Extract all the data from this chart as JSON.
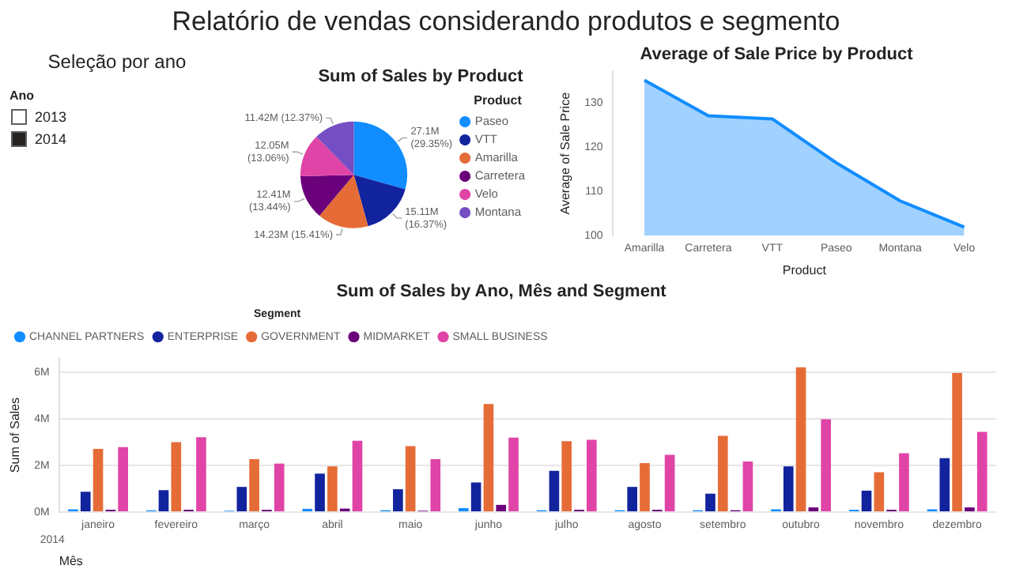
{
  "chart_data": [
    {
      "type": "other",
      "title": "Seleção por ano",
      "legend_title": "Ano",
      "categories": [
        "2013",
        "2014"
      ],
      "colors": [
        "#ffffff",
        "#252423"
      ],
      "annotations": [
        "Relatório de vendas considerando produtos e segmento"
      ]
    },
    {
      "type": "pie",
      "title": "Sum of Sales by Product",
      "legend_title": "Product",
      "legend": "right",
      "categories": [
        "Paseo",
        "VTT",
        "Amarilla",
        "Carretera",
        "Velo",
        "Montana"
      ],
      "values": [
        29.35,
        16.37,
        15.41,
        13.44,
        13.06,
        12.37
      ],
      "colors": [
        "#118dff",
        "#12239e",
        "#e66c37",
        "#6b007b",
        "#e044a7",
        "#744ec2"
      ],
      "value_labels": [
        "27.1M\n(29.35%)",
        "15.11M\n(16.37%)",
        "14.23M (15.41%)",
        "12.41M\n(13.44%)",
        "12.05M\n(13.06%)",
        "11.42M (12.37%)"
      ]
    },
    {
      "type": "area",
      "title": "Average of Sale Price by Product",
      "xlabel": "Product",
      "ylabel": "Average of Sale Price",
      "categories": [
        "Amarilla",
        "Carretera",
        "VTT",
        "Paseo",
        "Montana",
        "Velo"
      ],
      "values": [
        135.0,
        127.0,
        126.3,
        116.4,
        107.8,
        101.9
      ],
      "color": "#118dff",
      "ylim": [
        100,
        137
      ],
      "yticks": [
        100,
        110,
        120,
        130
      ]
    },
    {
      "type": "bar",
      "title": "Sum of Sales by Ano, Mês and Segment",
      "xlabel": "Mês",
      "ylabel": "Sum of Sales",
      "legend_title": "Segment",
      "legend": "top left",
      "grid": "y",
      "annotations": [
        "2014"
      ],
      "categories": [
        "janeiro",
        "fevereiro",
        "março",
        "abril",
        "maio",
        "junho",
        "julho",
        "agosto",
        "setembro",
        "outubro",
        "novembro",
        "dezembro"
      ],
      "ylim": [
        0,
        6.6
      ],
      "yticks": [
        {
          "value": 0,
          "label": "0M"
        },
        {
          "value": 2,
          "label": "2M"
        },
        {
          "value": 4,
          "label": "4M"
        },
        {
          "value": 6,
          "label": "6M"
        }
      ],
      "series": [
        {
          "name": "CHANNEL PARTNERS",
          "color": "#118dff",
          "values": [
            0.12,
            0.08,
            0.06,
            0.14,
            0.08,
            0.17,
            0.08,
            0.08,
            0.08,
            0.12,
            0.1,
            0.12
          ]
        },
        {
          "name": "ENTERPRISE",
          "color": "#12239e",
          "values": [
            0.87,
            0.94,
            1.08,
            1.65,
            0.98,
            1.27,
            1.77,
            1.08,
            0.79,
            1.96,
            0.92,
            2.31
          ]
        },
        {
          "name": "GOVERNMENT",
          "color": "#e66c37",
          "values": [
            2.71,
            3.0,
            2.27,
            1.96,
            2.83,
            4.63,
            3.04,
            2.1,
            3.27,
            6.21,
            1.71,
            5.96
          ]
        },
        {
          "name": "MIDMARKET",
          "color": "#6b007b",
          "values": [
            0.1,
            0.1,
            0.1,
            0.15,
            0.06,
            0.31,
            0.1,
            0.1,
            0.08,
            0.2,
            0.1,
            0.2
          ]
        },
        {
          "name": "SMALL BUSINESS",
          "color": "#e044a7",
          "values": [
            2.79,
            3.21,
            2.08,
            3.06,
            2.27,
            3.19,
            3.1,
            2.46,
            2.17,
            3.98,
            2.52,
            3.44
          ]
        }
      ]
    }
  ]
}
